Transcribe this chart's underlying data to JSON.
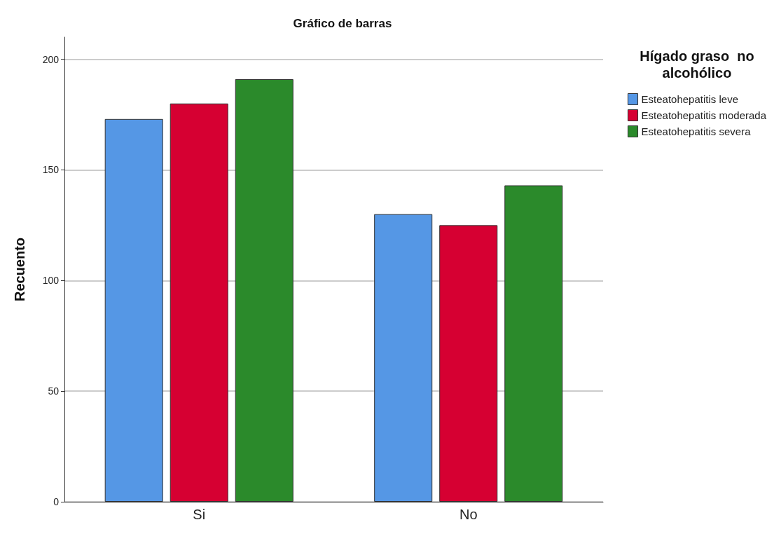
{
  "chart_data": {
    "type": "bar",
    "title": "Gráfico de barras",
    "ylabel": "Recuento",
    "legend_title": "Hígado graso  no alcohólico",
    "categories": [
      "Si",
      "No"
    ],
    "series": [
      {
        "name": "Esteatohepatitis leve",
        "color": "#5597e5",
        "values": [
          173,
          130
        ]
      },
      {
        "name": "Esteatohepatitis moderada",
        "color": "#d60032",
        "values": [
          180,
          125
        ]
      },
      {
        "name": "Esteatohepatitis severa",
        "color": "#2b8a2b",
        "values": [
          191,
          143
        ]
      }
    ],
    "ylim": [
      0,
      210
    ],
    "yticks": [
      0,
      50,
      100,
      150,
      200
    ],
    "grid": "y",
    "legend": "top right"
  }
}
